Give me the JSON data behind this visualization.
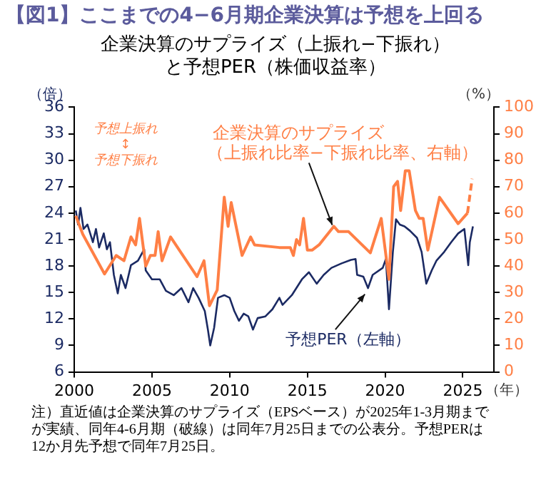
{
  "chart_data": {
    "type": "line",
    "title": "【図1】ここまでの4−6月期企業決算は予想を上回る",
    "subtitle": "企業決算のサプライズ（上振れ−下振れ）と予想PER（株価収益率）",
    "xlabel": "（年）",
    "ylabel": "（倍）",
    "y2label": "（%）",
    "xlim": [
      2000,
      2027
    ],
    "xticks": [
      2000,
      2005,
      2010,
      2015,
      2020,
      2025
    ],
    "ylim": [
      6,
      36
    ],
    "yticks": [
      6,
      9,
      12,
      15,
      18,
      21,
      24,
      27,
      30,
      33,
      36
    ],
    "y2lim": [
      0,
      100
    ],
    "y2ticks": [
      0,
      10,
      20,
      30,
      40,
      50,
      60,
      70,
      80,
      90,
      100
    ],
    "grid": false,
    "legend": false,
    "marker": "none",
    "series": [
      {
        "name": "予想PER（左軸）",
        "color": "#1b2a63",
        "line_style": "solid",
        "x": [
          2000.1,
          2000.25,
          2000.4,
          2000.6,
          2000.85,
          2001.2,
          2001.4,
          2001.6,
          2001.9,
          2002.1,
          2002.3,
          2002.55,
          2002.8,
          2003.0,
          2003.3,
          2003.65,
          2004.1,
          2004.5,
          2004.6,
          2005.0,
          2005.5,
          2005.9,
          2006.4,
          2006.9,
          2007.35,
          2007.65,
          2008.0,
          2008.4,
          2008.6,
          2008.75,
          2009.0,
          2009.25,
          2009.65,
          2010.0,
          2010.3,
          2010.6,
          2010.9,
          2011.2,
          2011.5,
          2011.8,
          2012.3,
          2012.75,
          2013.2,
          2013.4,
          2014.0,
          2014.65,
          2015.1,
          2015.6,
          2016.05,
          2016.55,
          2017.2,
          2017.8,
          2018.1,
          2018.2,
          2018.6,
          2018.9,
          2019.2,
          2019.85,
          2020.05,
          2020.25,
          2020.5,
          2020.7,
          2020.95,
          2021.25,
          2021.6,
          2022.05,
          2022.35,
          2022.65,
          2023.0,
          2023.3,
          2023.8,
          2024.25,
          2024.7,
          2025.1,
          2025.35,
          2025.45,
          2025.65
        ],
        "values": [
          24.3,
          22.7,
          24.6,
          22.2,
          22.7,
          20.7,
          22.2,
          20.1,
          21.7,
          19.9,
          20.7,
          17.0,
          14.9,
          17.0,
          15.5,
          18.1,
          18.6,
          19.9,
          17.5,
          16.5,
          16.5,
          15.2,
          14.7,
          15.5,
          13.9,
          15.5,
          14.4,
          12.9,
          10.8,
          9.0,
          11.0,
          14.4,
          14.7,
          14.4,
          12.9,
          11.8,
          12.6,
          12.3,
          10.8,
          12.1,
          12.3,
          13.1,
          14.4,
          13.6,
          14.7,
          16.5,
          17.3,
          16.0,
          17.0,
          17.8,
          18.3,
          18.7,
          18.8,
          17.0,
          16.8,
          15.5,
          17.0,
          17.8,
          18.8,
          13.1,
          19.6,
          23.3,
          22.7,
          22.5,
          22.0,
          21.2,
          19.6,
          16.0,
          17.5,
          18.6,
          19.6,
          20.7,
          21.7,
          22.2,
          18.1,
          20.7,
          22.5
        ]
      },
      {
        "name": "企業決算のサプライズ（上振れ比率−下振れ比率、右軸）",
        "color": "#ff7f45",
        "axis": "y2",
        "line_style": "solid",
        "x": [
          2000.1,
          2000.55,
          2001.95,
          2002.7,
          2003.2,
          2003.65,
          2003.95,
          2004.2,
          2004.6,
          2004.9,
          2005.2,
          2005.4,
          2005.65,
          2006.2,
          2007.9,
          2008.35,
          2008.7,
          2009.2,
          2009.65,
          2009.9,
          2010.1,
          2010.8,
          2011.35,
          2011.6,
          2013.2,
          2013.9,
          2014.1,
          2014.3,
          2014.5,
          2014.75,
          2015.0,
          2015.3,
          2015.75,
          2016.7,
          2017.0,
          2017.65,
          2019.05,
          2019.75,
          2020.25,
          2020.55,
          2020.8,
          2021.0,
          2021.3,
          2021.55,
          2021.95,
          2022.2,
          2022.45,
          2022.75,
          2023.5,
          2024.7,
          2025.3
        ],
        "values": [
          59,
          52,
          37,
          44,
          42,
          51,
          48,
          58,
          40,
          44,
          44,
          53,
          42,
          51,
          36,
          42,
          25,
          31,
          66,
          55,
          64,
          44,
          51,
          48,
          47,
          47,
          44,
          50,
          48,
          58,
          46,
          46,
          48,
          55,
          53,
          53,
          45,
          58,
          35,
          70,
          72,
          61,
          76,
          76,
          61,
          58,
          58,
          46,
          66,
          56,
          60
        ]
      },
      {
        "color": "#ff7f45",
        "axis": "y2",
        "line_style": "dashed",
        "x": [
          2025.3,
          2025.6
        ],
        "values": [
          60,
          73
        ]
      }
    ],
    "annotations": [
      "予想上振れ\n↕\n予想下振れ",
      "注）直近値は企業決算のサプライズ（EPSベース）が2025年1-3月期までが実績、同年4-6月期（破線）は同年7月25日までの公表分。予想PERは12か月先予想で同年7月25日。"
    ]
  }
}
